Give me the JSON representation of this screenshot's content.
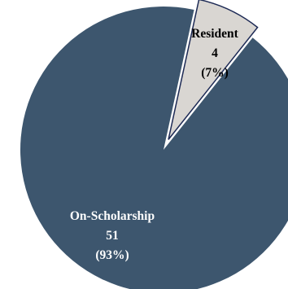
{
  "chart_data": {
    "type": "pie",
    "title": "",
    "slices": [
      {
        "label": "On-Scholarship",
        "value": 51,
        "percent": "93%",
        "color": "#3d566e",
        "exploded": false,
        "text_color": "#ffffff"
      },
      {
        "label": "Resident",
        "value": 4,
        "percent": "7%",
        "color": "#d9d6d2",
        "exploded": true,
        "text_color": "#000000"
      }
    ]
  }
}
